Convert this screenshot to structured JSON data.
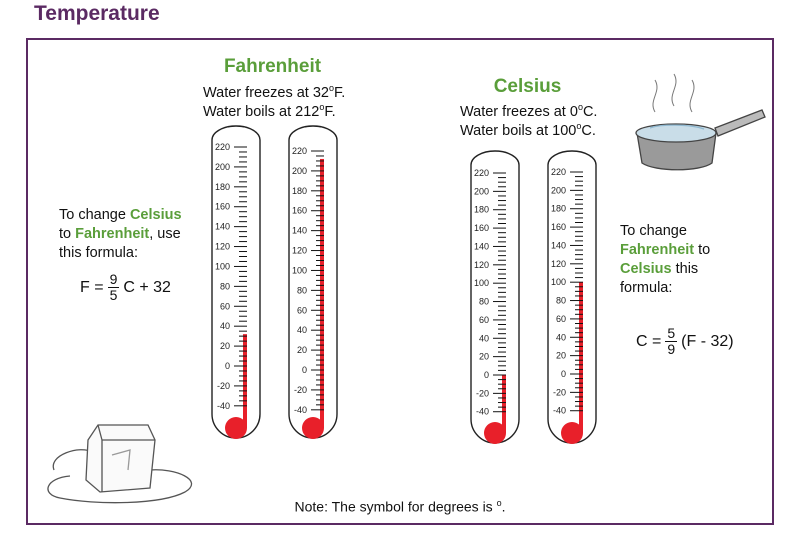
{
  "title": "Temperature",
  "fahrenheit": {
    "heading": "Fahrenheit",
    "freezes": "Water freezes at 32",
    "freezes_unit": "F.",
    "boils": "Water boils at 212",
    "boils_unit": "F."
  },
  "celsius": {
    "heading": "Celsius",
    "freezes": "Water freezes at 0",
    "freezes_unit": "C.",
    "boils": "Water boils at 100",
    "boils_unit": "C."
  },
  "deg": "o",
  "left_text": {
    "l1a": "To change ",
    "l1b": "Celsius",
    "l2a": "to ",
    "l2b": "Fahrenheit",
    "l2c": ", use",
    "l3": "this formula:"
  },
  "left_formula": {
    "lhs": "F =",
    "num": "9",
    "den": "5",
    "rhs": "C + 32"
  },
  "right_text": {
    "l1": "To change",
    "l2a": "Fahrenheit",
    "l2b": " to",
    "l3a": "Celsius",
    "l3b": " this",
    "l4": "formula:"
  },
  "right_formula": {
    "lhs": "C =",
    "num": "5",
    "den": "9",
    "rhs": "(F - 32)"
  },
  "note": "Note:  The symbol for degrees is ",
  "thermometers": [
    {
      "id": "f-freeze",
      "level": 32
    },
    {
      "id": "f-boil",
      "level": 212
    },
    {
      "id": "c-freeze",
      "level": 0
    },
    {
      "id": "c-boil",
      "level": 100
    }
  ],
  "scale_labels": [
    "220",
    "200",
    "180",
    "160",
    "140",
    "120",
    "100",
    "80",
    "60",
    "40",
    "20",
    "0",
    "-20",
    "-40"
  ],
  "colors": {
    "title": "#5b2a63",
    "green": "#5a9e3a",
    "mercury": "#e8202a"
  }
}
